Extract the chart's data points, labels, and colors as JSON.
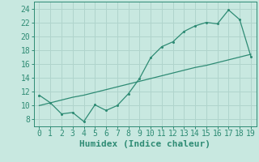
{
  "xlabel": "Humidex (Indice chaleur)",
  "x": [
    0,
    1,
    2,
    3,
    4,
    5,
    6,
    7,
    8,
    9,
    10,
    11,
    12,
    13,
    14,
    15,
    16,
    17,
    18,
    19
  ],
  "y_curve": [
    11.5,
    10.4,
    8.8,
    9.0,
    7.7,
    10.1,
    9.3,
    10.0,
    11.7,
    13.9,
    16.9,
    18.5,
    19.2,
    20.7,
    21.5,
    22.0,
    21.8,
    23.8,
    22.4,
    17.1
  ],
  "y_line": [
    10.0,
    10.4,
    10.8,
    11.2,
    11.5,
    11.9,
    12.3,
    12.7,
    13.1,
    13.5,
    13.9,
    14.3,
    14.7,
    15.1,
    15.5,
    15.8,
    16.2,
    16.6,
    17.0,
    17.4
  ],
  "line_color": "#2e8b74",
  "bg_color": "#c8e8e0",
  "grid_color": "#b0d4cc",
  "ylim": [
    7,
    25
  ],
  "xlim": [
    -0.5,
    19.5
  ],
  "yticks": [
    8,
    10,
    12,
    14,
    16,
    18,
    20,
    22,
    24
  ],
  "xticks": [
    0,
    1,
    2,
    3,
    4,
    5,
    6,
    7,
    8,
    9,
    10,
    11,
    12,
    13,
    14,
    15,
    16,
    17,
    18,
    19
  ],
  "tick_fontsize": 7,
  "xlabel_fontsize": 8
}
